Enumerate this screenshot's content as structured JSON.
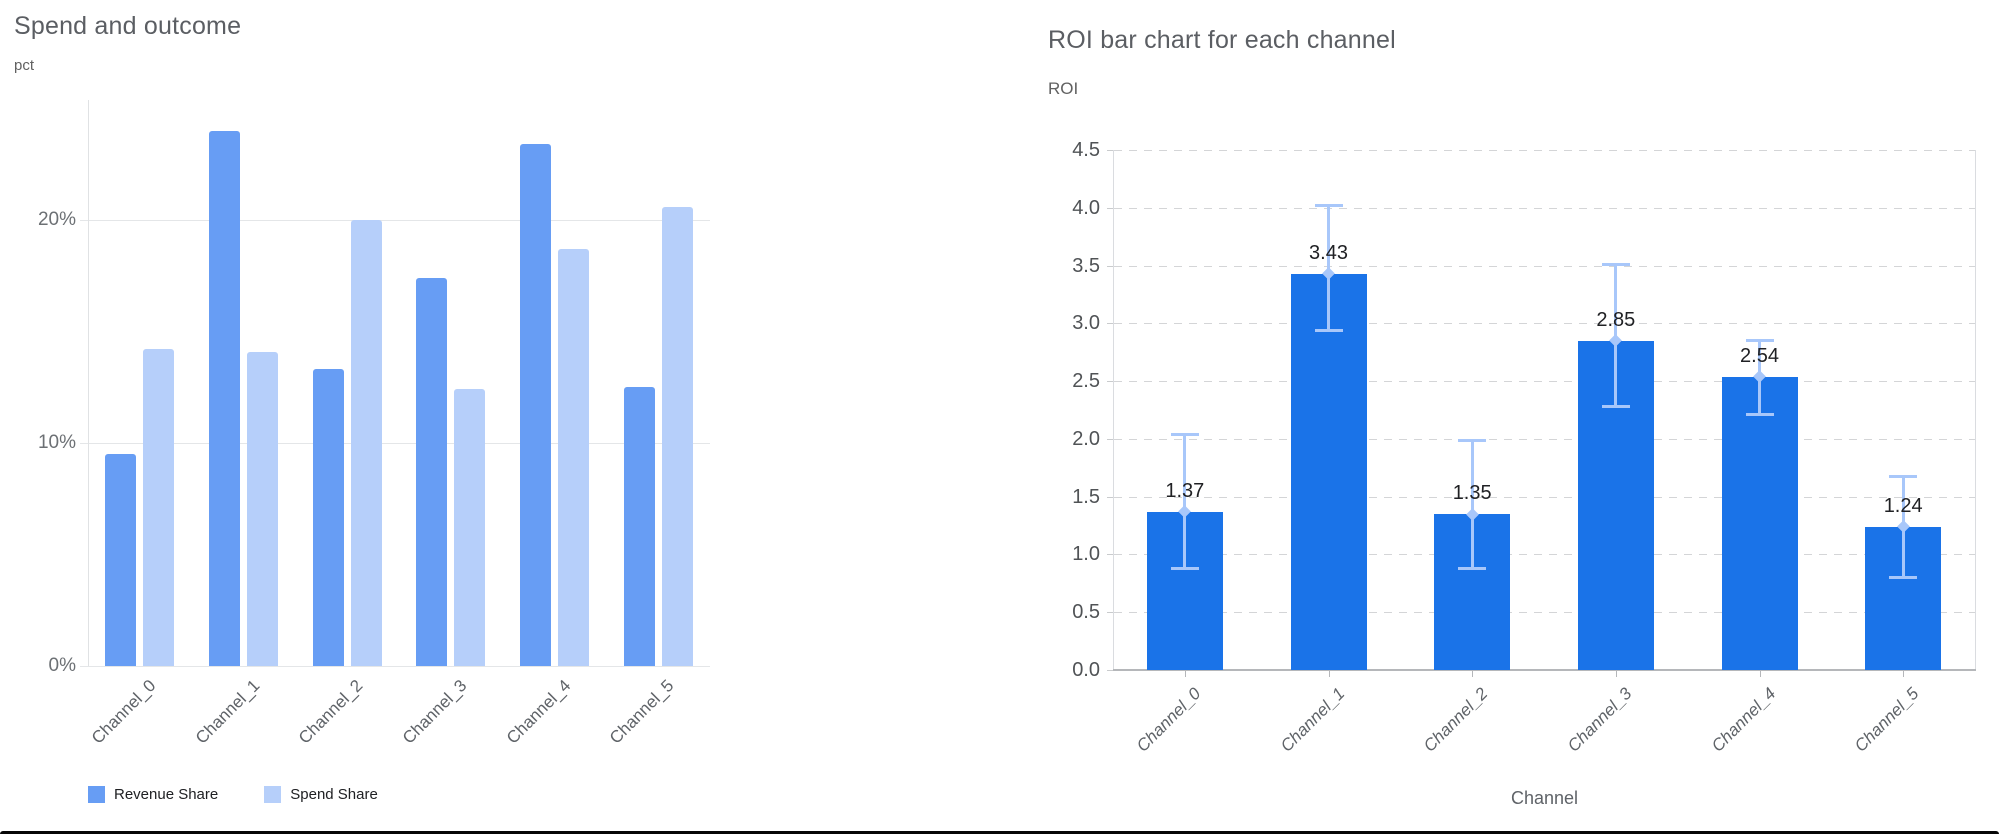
{
  "window": {
    "background": "#ffffff",
    "bottom_edge_color": "#060606"
  },
  "chart_data": [
    {
      "type": "bar",
      "title": "Spend and outcome",
      "ylabel": "pct",
      "xlabel": "",
      "categories": [
        "Channel_0",
        "Channel_1",
        "Channel_2",
        "Channel_3",
        "Channel_4",
        "Channel_5"
      ],
      "series": [
        {
          "name": "Revenue Share",
          "color": "#679df4",
          "values": [
            9.5,
            24.0,
            13.3,
            17.4,
            23.4,
            12.5
          ]
        },
        {
          "name": "Spend Share",
          "color": "#b6cffa",
          "values": [
            14.2,
            14.1,
            20.0,
            12.4,
            18.7,
            20.6
          ]
        }
      ],
      "y_tick_labels": [
        "0%",
        "10%",
        "20%"
      ],
      "y_tick_values": [
        0,
        10,
        20
      ],
      "ylim": [
        0,
        25.4
      ],
      "grid": "solid",
      "legend_position": "bottom"
    },
    {
      "type": "bar",
      "title": "ROI bar chart for each channel",
      "ylabel": "ROI",
      "xlabel": "Channel",
      "categories": [
        "Channel_0",
        "Channel_1",
        "Channel_2",
        "Channel_3",
        "Channel_4",
        "Channel_5"
      ],
      "series": [
        {
          "name": "ROI",
          "color": "#1a73e8",
          "values": [
            1.37,
            3.43,
            1.35,
            2.85,
            2.54,
            1.24
          ]
        }
      ],
      "value_labels": [
        "1.37",
        "3.43",
        "1.35",
        "2.85",
        "2.54",
        "1.24"
      ],
      "error_low": [
        0.87,
        2.93,
        0.87,
        2.28,
        2.21,
        0.8
      ],
      "error_high": [
        2.04,
        4.02,
        1.99,
        3.51,
        2.86,
        1.68
      ],
      "error_color": "#a8c7fa",
      "y_tick_labels": [
        "0.0",
        "0.5",
        "1.0",
        "1.5",
        "2.0",
        "2.5",
        "3.0",
        "3.5",
        "4.0",
        "4.5"
      ],
      "y_tick_values": [
        0,
        0.5,
        1,
        1.5,
        2,
        2.5,
        3,
        3.5,
        4,
        4.5
      ],
      "ylim": [
        0,
        4.5
      ],
      "grid": "dashed",
      "legend_position": "none"
    }
  ]
}
